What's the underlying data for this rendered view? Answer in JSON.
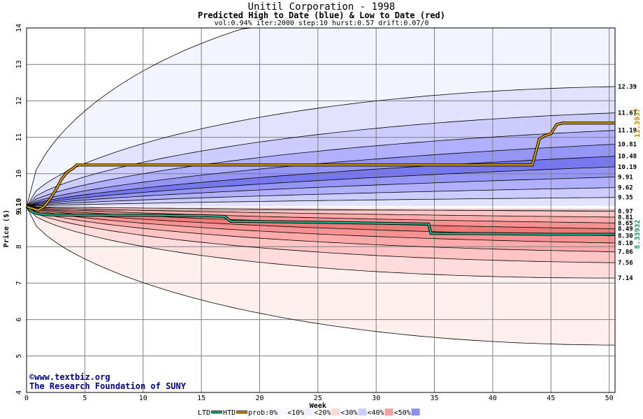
{
  "chart_data": {
    "type": "area",
    "title": "Unitil Corporation - 1998",
    "subtitle": "Predicted High to Date (blue) &  Low to Date (red)",
    "params": "vol:0.94% iter:2000 step:10 hurst:0.57 drift:0.07/0",
    "xlabel": "Week",
    "ylabel": "Price ($)",
    "xlim": [
      0,
      50.5
    ],
    "ylim": [
      4,
      14
    ],
    "x_ticks": [
      0,
      5,
      10,
      15,
      20,
      25,
      30,
      35,
      40,
      45,
      50
    ],
    "y_ticks": [
      4,
      5,
      6,
      7,
      8,
      9,
      10,
      11,
      12,
      13,
      14
    ],
    "grid": true,
    "start_price": 9.1,
    "start_price_label": "9.10",
    "htd_final": 11.3937,
    "htd_final_label": "11.3937",
    "ltd_final": 8.33932,
    "ltd_final_label": "8.33932",
    "right_labels": [
      {
        "value": 12.39,
        "text": "12.39"
      },
      {
        "value": 11.67,
        "text": "11.67"
      },
      {
        "value": 11.19,
        "text": "11.19"
      },
      {
        "value": 10.81,
        "text": "10.81"
      },
      {
        "value": 10.48,
        "text": "10.48"
      },
      {
        "value": 10.19,
        "text": "10.19"
      },
      {
        "value": 9.91,
        "text": "9.91"
      },
      {
        "value": 9.62,
        "text": "9.62"
      },
      {
        "value": 9.35,
        "text": "9.35"
      },
      {
        "value": 8.97,
        "text": "8.97"
      },
      {
        "value": 8.81,
        "text": "8.81"
      },
      {
        "value": 8.65,
        "text": "8.65"
      },
      {
        "value": 8.49,
        "text": "8.49"
      },
      {
        "value": 8.3,
        "text": "8.30"
      },
      {
        "value": 8.1,
        "text": "8.10"
      },
      {
        "value": 7.86,
        "text": "7.86"
      },
      {
        "value": 7.56,
        "text": "7.56"
      },
      {
        "value": 7.14,
        "text": "7.14"
      }
    ],
    "high_bands": [
      {
        "prob": "0%",
        "color": "#f4f4ff",
        "outer_end": 14.8,
        "outer_k": 3.3,
        "inner_end": 12.39,
        "inner_k": 1.37
      },
      {
        "prob": "10%",
        "color": "#e2e2ff",
        "outer_end": 12.39,
        "outer_k": 1.37,
        "inner_end": 11.67,
        "inner_k": 0.9
      },
      {
        "prob": "20%",
        "color": "#ccccff",
        "outer_end": 11.67,
        "outer_k": 0.9,
        "inner_end": 11.19,
        "inner_k": 0.62
      },
      {
        "prob": "30%",
        "color": "#b0b0ff",
        "outer_end": 11.19,
        "outer_k": 0.62,
        "inner_end": 10.81,
        "inner_k": 0.42
      },
      {
        "prob": "40%",
        "color": "#9595f6",
        "outer_end": 10.81,
        "outer_k": 0.42,
        "inner_end": 10.48,
        "inner_k": 0.3
      },
      {
        "prob": "50%",
        "color": "#7777ee",
        "outer_end": 10.48,
        "outer_k": 0.3,
        "inner_end": 10.19,
        "inner_k": 0.22
      },
      {
        "prob": "40%",
        "color": "#9595f6",
        "outer_end": 10.19,
        "outer_k": 0.22,
        "inner_end": 9.91,
        "inner_k": 0.16
      },
      {
        "prob": "30%",
        "color": "#b0b0ff",
        "outer_end": 9.91,
        "outer_k": 0.16,
        "inner_end": 9.62,
        "inner_k": 0.1
      },
      {
        "prob": "20%",
        "color": "#ccccff",
        "outer_end": 9.62,
        "outer_k": 0.1,
        "inner_end": 9.35,
        "inner_k": 0.05
      },
      {
        "prob": "10%",
        "color": "#e2e2ff",
        "outer_end": 9.35,
        "outer_k": 0.05,
        "inner_end": 9.12,
        "inner_k": 0.0
      }
    ],
    "low_bands": [
      {
        "prob": "0%",
        "color": "#fff0f0",
        "outer_end": 5.3,
        "outer_k": -1.7,
        "inner_end": 7.14,
        "inner_k": -0.9
      },
      {
        "prob": "10%",
        "color": "#ffdcdc",
        "outer_end": 7.14,
        "outer_k": -0.9,
        "inner_end": 7.56,
        "inner_k": -0.62
      },
      {
        "prob": "20%",
        "color": "#ffc4c4",
        "outer_end": 7.56,
        "outer_k": -0.62,
        "inner_end": 7.86,
        "inner_k": -0.45
      },
      {
        "prob": "30%",
        "color": "#ffaaaa",
        "outer_end": 7.86,
        "outer_k": -0.45,
        "inner_end": 8.1,
        "inner_k": -0.33
      },
      {
        "prob": "40%",
        "color": "#f69292",
        "outer_end": 8.1,
        "outer_k": -0.33,
        "inner_end": 8.3,
        "inner_k": -0.24
      },
      {
        "prob": "50%",
        "color": "#ee7a7a",
        "outer_end": 8.3,
        "outer_k": -0.24,
        "inner_end": 8.49,
        "inner_k": -0.17
      },
      {
        "prob": "40%",
        "color": "#f69292",
        "outer_end": 8.49,
        "outer_k": -0.17,
        "inner_end": 8.65,
        "inner_k": -0.11
      },
      {
        "prob": "30%",
        "color": "#ffaaaa",
        "outer_end": 8.65,
        "outer_k": -0.11,
        "inner_end": 8.81,
        "inner_k": -0.06
      },
      {
        "prob": "20%",
        "color": "#ffc4c4",
        "outer_end": 8.81,
        "outer_k": -0.06,
        "inner_end": 8.97,
        "inner_k": -0.02
      },
      {
        "prob": "10%",
        "color": "#ffdcdc",
        "outer_end": 8.97,
        "outer_k": -0.02,
        "inner_end": 9.05,
        "inner_k": 0.0
      }
    ],
    "htd_series": {
      "name": "HTD",
      "color": "#e8a800",
      "points": [
        [
          0,
          9.1
        ],
        [
          0.5,
          9.05
        ],
        [
          1,
          9.0
        ],
        [
          1.5,
          9.1
        ],
        [
          2,
          9.3
        ],
        [
          2.5,
          9.55
        ],
        [
          3,
          9.85
        ],
        [
          3.5,
          10.05
        ],
        [
          4,
          10.15
        ],
        [
          4.3,
          10.24
        ],
        [
          10,
          10.24
        ],
        [
          20,
          10.24
        ],
        [
          30,
          10.24
        ],
        [
          40,
          10.24
        ],
        [
          43.4,
          10.24
        ],
        [
          44,
          10.95
        ],
        [
          44.5,
          11.05
        ],
        [
          45,
          11.1
        ],
        [
          45.5,
          11.35
        ],
        [
          46,
          11.39
        ],
        [
          50.5,
          11.39
        ]
      ]
    },
    "ltd_series": {
      "name": "LTD",
      "color": "#20c090",
      "points": [
        [
          0,
          9.1
        ],
        [
          0.5,
          8.95
        ],
        [
          1,
          8.9
        ],
        [
          2,
          8.87
        ],
        [
          5,
          8.86
        ],
        [
          10,
          8.86
        ],
        [
          15,
          8.85
        ],
        [
          17,
          8.83
        ],
        [
          17.5,
          8.7
        ],
        [
          25,
          8.67
        ],
        [
          34.5,
          8.62
        ],
        [
          34.7,
          8.36
        ],
        [
          38,
          8.36
        ],
        [
          45,
          8.34
        ],
        [
          50.5,
          8.34
        ]
      ]
    },
    "legend": [
      {
        "label": "LTD",
        "kind": "line",
        "color": "#20c090"
      },
      {
        "label": "HTD",
        "kind": "line",
        "color": "#e8a800"
      },
      {
        "label": "prob:0%",
        "kind": "swatch",
        "color": "#f8f8ff"
      },
      {
        "label": "<10%",
        "kind": "swatch",
        "color": "#eeeefa"
      },
      {
        "label": "<20%",
        "kind": "swatch",
        "color": "#ffd8d8"
      },
      {
        "label": "<30%",
        "kind": "swatch",
        "color": "#ccccff"
      },
      {
        "label": "<40%",
        "kind": "swatch",
        "color": "#f5a0a0"
      },
      {
        "label": "<50%",
        "kind": "swatch",
        "color": "#9090f0"
      }
    ]
  },
  "watermark": {
    "line1": "©www.textbiz.org",
    "line2": "The Research Foundation of SUNY"
  }
}
